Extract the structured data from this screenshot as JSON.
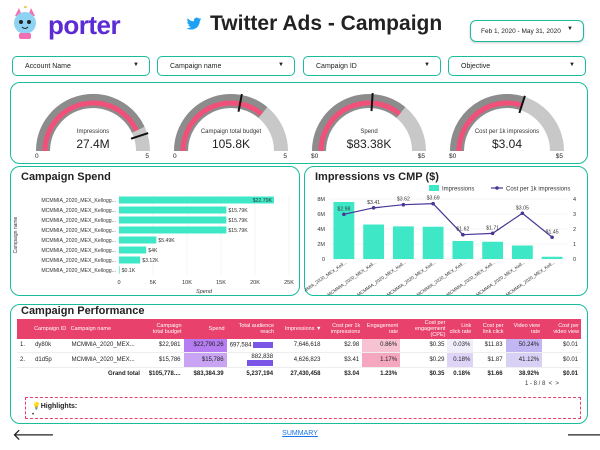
{
  "header": {
    "logo_text": "porter",
    "title": "Twitter Ads - Campaign",
    "date_range": "Feb 1, 2020 - May 31, 2020",
    "colors": {
      "brand": "#5b2bd6",
      "twitter": "#1da1f2",
      "accent": "#1abc9c",
      "pink": "#e8416b"
    }
  },
  "filters": [
    {
      "label": "Account Name"
    },
    {
      "label": "Campaign name"
    },
    {
      "label": "Campaign ID"
    },
    {
      "label": "Objective"
    }
  ],
  "kpis": [
    {
      "label": "Impressions",
      "value": "27.4M",
      "min": "0",
      "max": "5",
      "fill": 0.86,
      "needle": 0.9
    },
    {
      "label": "Campaign total budget",
      "value": "105.8K",
      "min": "0",
      "max": "5",
      "fill": 0.72,
      "needle": 0.56
    },
    {
      "label": "Spend",
      "value": "$83.38K",
      "min": "$0",
      "max": "$5",
      "fill": 0.72,
      "needle": 0.52
    },
    {
      "label": "Cost per 1k impressions",
      "value": "$3.04",
      "min": "$0",
      "max": "$5",
      "fill": 0.6,
      "needle": 0.6
    }
  ],
  "spend_chart": {
    "title": "Campaign Spend",
    "ylabel": "Campaign name",
    "xlabel": "Spend",
    "chart_data": {
      "type": "bar",
      "orientation": "horizontal",
      "categories": [
        "MCMMIA_2020_MEX_Kellogg...",
        "MCMMIA_2020_MEX_Kellogg...",
        "MCMMIA_2020_MEX_Kellogg...",
        "MCMMIA_2020_MEX_Kellogg...",
        "MCMMIA_2020_MEX_Kellogg...",
        "MCMMIA_2020_MEX_Kellogg...",
        "MCMMIA_2020_MEX_Kellogg...",
        "MCMMIA_2020_MEX_Kellogg..."
      ],
      "values": [
        22790,
        15790,
        15790,
        15790,
        5490,
        4000,
        3120,
        100
      ],
      "data_labels": [
        "$22.79K",
        "$15.79K",
        "$15.79K",
        "$15.79K",
        "$5.49K",
        "$4K",
        "$3.12K",
        "$0.1K"
      ],
      "xticks": [
        "0",
        "5K",
        "10K",
        "15K",
        "20K",
        "25K"
      ],
      "xlim": [
        0,
        25000
      ],
      "xlabel": "Spend",
      "ylabel": "Campaign name",
      "color": "#3ee8c7"
    }
  },
  "cmp_chart": {
    "title": "Impressions vs CMP ($)",
    "legend": [
      "Impressions",
      "Cost per 1k impressions"
    ],
    "chart_data": {
      "type": "bar",
      "categories": [
        "MCMMIA_2020_MEX_Kell...",
        "MCMMIA_2020_MEX_Kell...",
        "MCMMIA_2020_MEX_Kell...",
        "MCMMIA_2020_MEX_Kell...",
        "MCMMIA_2020_MEX_Kell...",
        "MCMMIA_2020_MEX_Kell...",
        "MCMMIA_2020_MEX_Kell...",
        "MCMMIA_2020_MEX_Kell..."
      ],
      "series": [
        {
          "name": "Impressions",
          "type": "bar",
          "axis": "left",
          "values": [
            7600000,
            4600000,
            4350000,
            4300000,
            2400000,
            2300000,
            1800000,
            300000
          ],
          "color": "#3ee8c7"
        },
        {
          "name": "Cost per 1k impressions",
          "type": "line",
          "axis": "right",
          "values": [
            2.98,
            3.41,
            3.62,
            3.69,
            1.62,
            1.71,
            3.05,
            1.45
          ],
          "labels": [
            "$2.98",
            "$3.41",
            "$3.62",
            "$3.69",
            "$1.62",
            "$1.71",
            "$3.05",
            "$1.45"
          ],
          "color": "#4a3596"
        }
      ],
      "yticks_left": [
        "0",
        "2M",
        "4M",
        "6M",
        "8M"
      ],
      "ylim_left": [
        0,
        8000000
      ],
      "yticks_right": [
        "0",
        "1",
        "2",
        "3",
        "4"
      ],
      "ylim_right": [
        0,
        4
      ]
    }
  },
  "performance": {
    "title": "Campaign Performance",
    "columns": [
      "Campaign ID",
      "Campaign name",
      "Campaign total budget",
      "Spend",
      "Total audience reach",
      "Impressions ▼",
      "Cost per 1k impressions",
      "Engagement rate",
      "Cost per engagement (CPE)",
      "Link click rate",
      "Cost per link click",
      "Video view rate",
      "Cost per video view"
    ],
    "rows": [
      [
        "1.",
        "dy80k",
        "MCMMIA_2020_MEX...",
        "$22,981",
        "$22,790.26",
        "697,584",
        "7,646,618",
        "$2.98",
        "0.86%",
        "$0.35",
        "0.03%",
        "$11.83",
        "50.24%",
        "$0.01"
      ],
      [
        "2.",
        "d1d5p",
        "MCMMIA_2020_MEX...",
        "$15,786",
        "$15,786",
        "882,838",
        "4,626,823",
        "$3.41",
        "1.17%",
        "$0.29",
        "0.18%",
        "$1.87",
        "41.12%",
        "$0.01"
      ]
    ],
    "total": [
      "Grand total",
      "$105,778....",
      "$83,384.39",
      "5,237,194",
      "27,430,458",
      "$3.04",
      "1.23%",
      "$0.35",
      "0.18%",
      "$1.66",
      "38.92%",
      "$0.01"
    ],
    "pager": "1 - 8 / 8",
    "highlights_label": "💡Highlights:",
    "highlights_bullet": "•"
  },
  "footer": {
    "summary_link": "SUMMARY",
    "prev_arrow": "🡐",
    "next_arrow": "🡒"
  }
}
